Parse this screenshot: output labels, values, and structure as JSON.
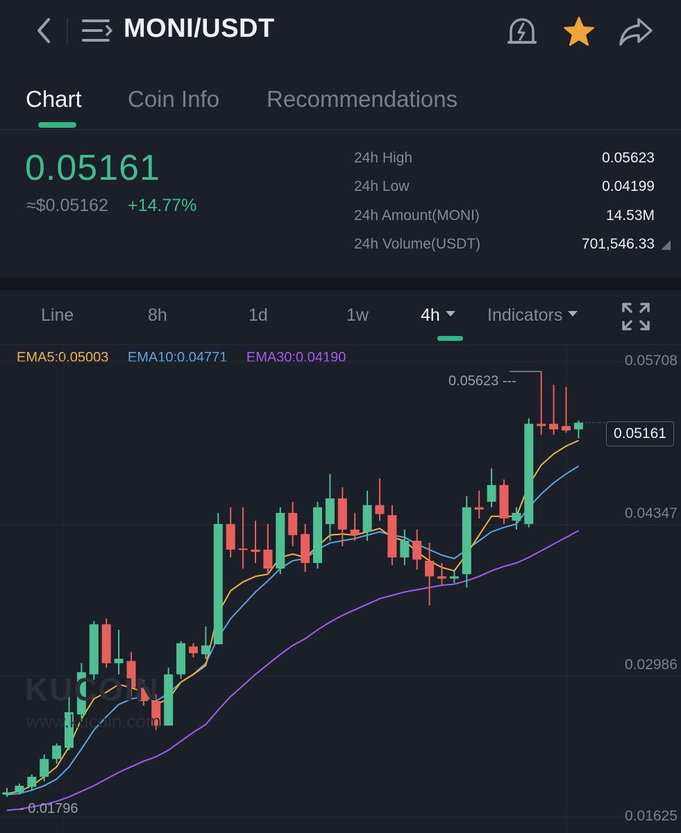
{
  "header": {
    "pair": "MONI/USDT",
    "icons": {
      "back": "back-chevron-icon",
      "menu": "menu-list-icon",
      "alarm": "price-alert-icon",
      "favorite": "star-icon",
      "share": "share-icon"
    },
    "favorite_color": "#f0a33a"
  },
  "tabs": [
    {
      "label": "Chart",
      "active": true
    },
    {
      "label": "Coin Info",
      "active": false
    },
    {
      "label": "Recommendations",
      "active": false
    }
  ],
  "ticker": {
    "price": "0.05161",
    "usd_price": "≈$0.05162",
    "change": "+14.77%",
    "stats": [
      {
        "label": "24h High",
        "value": "0.05623"
      },
      {
        "label": "24h Low",
        "value": "0.04199"
      },
      {
        "label": "24h Amount(MONI)",
        "value": "14.53M"
      },
      {
        "label": "24h Volume(USDT)",
        "value": "701,546.33"
      }
    ]
  },
  "intervals": [
    {
      "label": "Line"
    },
    {
      "label": "8h"
    },
    {
      "label": "1d"
    },
    {
      "label": "1w"
    },
    {
      "label": "4h",
      "active": true
    }
  ],
  "indicators_label": "Indicators",
  "ema_legend": [
    {
      "label": "EMA5:0.05003",
      "color": "#f0b24a"
    },
    {
      "label": "EMA10:0.04771",
      "color": "#5aa7e0"
    },
    {
      "label": "EMA30:0.04190",
      "color": "#a35cf0"
    }
  ],
  "watermark": {
    "brand": "KUCOIN",
    "url": "www.kucoin.com"
  },
  "chart_data": {
    "type": "candlestick",
    "y_axis_labels": [
      "0.05708",
      "0.04347",
      "0.02986",
      "0.01625"
    ],
    "ylim": [
      0.01625,
      0.05708
    ],
    "last_price": "0.05161",
    "high_marker": "0.05623",
    "low_marker": "0.01796",
    "up_color": "#4fbf94",
    "down_color": "#e8605c",
    "candles": [
      {
        "o": 0.0182,
        "h": 0.0188,
        "l": 0.018,
        "c": 0.0184
      },
      {
        "o": 0.0184,
        "h": 0.0192,
        "l": 0.0182,
        "c": 0.019
      },
      {
        "o": 0.0189,
        "h": 0.02,
        "l": 0.0186,
        "c": 0.0198
      },
      {
        "o": 0.0198,
        "h": 0.0218,
        "l": 0.0194,
        "c": 0.0214
      },
      {
        "o": 0.0214,
        "h": 0.0228,
        "l": 0.021,
        "c": 0.0226
      },
      {
        "o": 0.0224,
        "h": 0.0275,
        "l": 0.0222,
        "c": 0.0256
      },
      {
        "o": 0.0254,
        "h": 0.03,
        "l": 0.0248,
        "c": 0.0292
      },
      {
        "o": 0.029,
        "h": 0.0338,
        "l": 0.0285,
        "c": 0.0335
      },
      {
        "o": 0.0335,
        "h": 0.034,
        "l": 0.0296,
        "c": 0.03
      },
      {
        "o": 0.03,
        "h": 0.033,
        "l": 0.029,
        "c": 0.0304
      },
      {
        "o": 0.0302,
        "h": 0.031,
        "l": 0.027,
        "c": 0.0278
      },
      {
        "o": 0.0278,
        "h": 0.0285,
        "l": 0.0262,
        "c": 0.0266
      },
      {
        "o": 0.0266,
        "h": 0.0272,
        "l": 0.024,
        "c": 0.0244
      },
      {
        "o": 0.0244,
        "h": 0.0296,
        "l": 0.0244,
        "c": 0.029
      },
      {
        "o": 0.029,
        "h": 0.032,
        "l": 0.0286,
        "c": 0.0318
      },
      {
        "o": 0.0315,
        "h": 0.0318,
        "l": 0.0305,
        "c": 0.0309
      },
      {
        "o": 0.0308,
        "h": 0.0333,
        "l": 0.0304,
        "c": 0.0316
      },
      {
        "o": 0.0317,
        "h": 0.0435,
        "l": 0.0317,
        "c": 0.0425
      },
      {
        "o": 0.0425,
        "h": 0.044,
        "l": 0.0395,
        "c": 0.0402
      },
      {
        "o": 0.0403,
        "h": 0.044,
        "l": 0.0385,
        "c": 0.0402
      },
      {
        "o": 0.0402,
        "h": 0.0428,
        "l": 0.039,
        "c": 0.04
      },
      {
        "o": 0.0402,
        "h": 0.0425,
        "l": 0.038,
        "c": 0.0385
      },
      {
        "o": 0.0385,
        "h": 0.044,
        "l": 0.038,
        "c": 0.0435
      },
      {
        "o": 0.0435,
        "h": 0.0445,
        "l": 0.0405,
        "c": 0.0415
      },
      {
        "o": 0.0416,
        "h": 0.0425,
        "l": 0.0382,
        "c": 0.039
      },
      {
        "o": 0.039,
        "h": 0.0445,
        "l": 0.0385,
        "c": 0.044
      },
      {
        "o": 0.0425,
        "h": 0.047,
        "l": 0.041,
        "c": 0.0448
      },
      {
        "o": 0.0448,
        "h": 0.0458,
        "l": 0.0405,
        "c": 0.042
      },
      {
        "o": 0.042,
        "h": 0.0435,
        "l": 0.041,
        "c": 0.0415
      },
      {
        "o": 0.0418,
        "h": 0.0455,
        "l": 0.041,
        "c": 0.0442
      },
      {
        "o": 0.0442,
        "h": 0.0466,
        "l": 0.0428,
        "c": 0.0434
      },
      {
        "o": 0.0433,
        "h": 0.0442,
        "l": 0.0388,
        "c": 0.0395
      },
      {
        "o": 0.0395,
        "h": 0.042,
        "l": 0.0388,
        "c": 0.041
      },
      {
        "o": 0.041,
        "h": 0.042,
        "l": 0.0384,
        "c": 0.0393
      },
      {
        "o": 0.0392,
        "h": 0.0408,
        "l": 0.0352,
        "c": 0.0378
      },
      {
        "o": 0.0378,
        "h": 0.039,
        "l": 0.037,
        "c": 0.0376
      },
      {
        "o": 0.0376,
        "h": 0.0383,
        "l": 0.0372,
        "c": 0.0378
      },
      {
        "o": 0.038,
        "h": 0.045,
        "l": 0.0368,
        "c": 0.044
      },
      {
        "o": 0.044,
        "h": 0.0455,
        "l": 0.043,
        "c": 0.0438
      },
      {
        "o": 0.0445,
        "h": 0.0475,
        "l": 0.044,
        "c": 0.046
      },
      {
        "o": 0.046,
        "h": 0.0465,
        "l": 0.0425,
        "c": 0.043
      },
      {
        "o": 0.0428,
        "h": 0.044,
        "l": 0.042,
        "c": 0.0435
      },
      {
        "o": 0.0425,
        "h": 0.052,
        "l": 0.0422,
        "c": 0.0515
      },
      {
        "o": 0.0515,
        "h": 0.0562,
        "l": 0.0505,
        "c": 0.0513
      },
      {
        "o": 0.0515,
        "h": 0.055,
        "l": 0.0505,
        "c": 0.051
      },
      {
        "o": 0.0513,
        "h": 0.0548,
        "l": 0.0507,
        "c": 0.0509
      },
      {
        "o": 0.051,
        "h": 0.0518,
        "l": 0.0502,
        "c": 0.0516
      }
    ],
    "ema5": [
      0.0183,
      0.0185,
      0.019,
      0.0198,
      0.0207,
      0.0225,
      0.025,
      0.0268,
      0.0274,
      0.0281,
      0.0278,
      0.0274,
      0.0263,
      0.0268,
      0.0283,
      0.029,
      0.0298,
      0.0345,
      0.0365,
      0.0373,
      0.0378,
      0.038,
      0.0395,
      0.0398,
      0.0395,
      0.0405,
      0.0415,
      0.0416,
      0.0415,
      0.0418,
      0.0421,
      0.0413,
      0.041,
      0.04,
      0.0392,
      0.0386,
      0.0383,
      0.0398,
      0.0415,
      0.0432,
      0.0432,
      0.0432,
      0.046,
      0.0478,
      0.0488,
      0.0495,
      0.05
    ],
    "ema10": [
      0.0182,
      0.0183,
      0.0186,
      0.019,
      0.0196,
      0.0207,
      0.0223,
      0.024,
      0.0252,
      0.0263,
      0.0268,
      0.027,
      0.0266,
      0.0273,
      0.0283,
      0.029,
      0.03,
      0.0323,
      0.034,
      0.0352,
      0.0364,
      0.0374,
      0.0385,
      0.0392,
      0.0394,
      0.0402,
      0.0408,
      0.041,
      0.0412,
      0.0415,
      0.0418,
      0.0415,
      0.0413,
      0.0407,
      0.0402,
      0.0397,
      0.0394,
      0.0402,
      0.041,
      0.0418,
      0.0422,
      0.0425,
      0.044,
      0.0452,
      0.0462,
      0.047,
      0.0477
    ],
    "ema30": [
      0.0168,
      0.0169,
      0.0171,
      0.0173,
      0.0176,
      0.018,
      0.0185,
      0.019,
      0.0196,
      0.0202,
      0.0207,
      0.0212,
      0.0216,
      0.0222,
      0.023,
      0.0238,
      0.0245,
      0.0258,
      0.027,
      0.028,
      0.029,
      0.0299,
      0.0308,
      0.0316,
      0.0322,
      0.033,
      0.0337,
      0.0343,
      0.0348,
      0.0353,
      0.0358,
      0.0361,
      0.0364,
      0.0366,
      0.0368,
      0.037,
      0.0371,
      0.0374,
      0.0378,
      0.0383,
      0.0387,
      0.039,
      0.0395,
      0.0401,
      0.0407,
      0.0413,
      0.0419
    ]
  }
}
